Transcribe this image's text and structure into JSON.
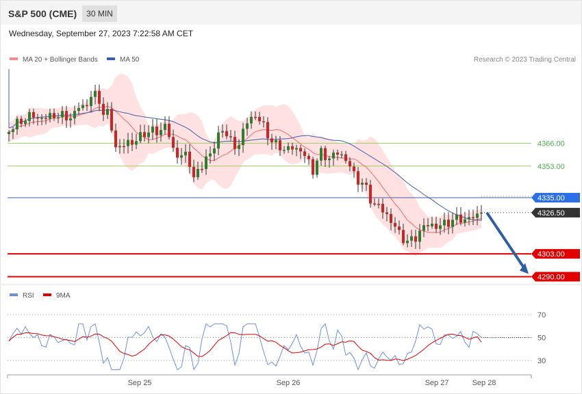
{
  "header": {
    "symbol": "S&P 500 (CME)",
    "timeframe": "30 MIN"
  },
  "datetime": "Wednesday, September 27, 2023 7:22:58 AM CET",
  "legend": {
    "ma20": "MA 20 + Bollinger Bands",
    "ma50": "MA 50"
  },
  "watermark": "Research © 2023 Trading Central",
  "colors": {
    "bullish": "#2e7d32",
    "bearish": "#c62828",
    "ma20": "#f26b6b",
    "ma50": "#3b5ea8",
    "band": "#ffd9d9",
    "pivot": "#9ccc65",
    "support": "#e00000",
    "current": "#333333",
    "ma50_tag": "#2d6fe6",
    "rsi": "#6b8fdc",
    "rsi_ma": "#e00000",
    "arrow": "#2f5f9e"
  },
  "chart_data": [
    {
      "type": "candlestick",
      "ylim": [
        4279,
        4412
      ],
      "levels": [
        {
          "label": "4366.00",
          "value": 4366.0,
          "kind": "resistance"
        },
        {
          "label": "4353.00",
          "value": 4353.0,
          "kind": "resistance"
        },
        {
          "label": "4335.00",
          "value": 4335.0,
          "kind": "ma50"
        },
        {
          "label": "4326.50",
          "value": 4326.5,
          "kind": "current"
        },
        {
          "label": "4303.00",
          "value": 4303.0,
          "kind": "support"
        },
        {
          "label": "4290.00",
          "value": 4290.0,
          "kind": "support"
        }
      ],
      "x_ticks": [
        "Sep 25",
        "Sep 26",
        "Sep 27",
        "Sep 28"
      ],
      "series": [
        {
          "name": "MA 20 + Bollinger Bands"
        },
        {
          "name": "MA 50"
        }
      ],
      "projection": {
        "from": 4326.5,
        "to": 4290.0
      }
    },
    {
      "type": "line",
      "series": [
        {
          "name": "RSI",
          "last": 50
        },
        {
          "name": "9MA",
          "last": 46
        }
      ],
      "ylim": [
        15,
        80
      ],
      "y_ticks": [
        "70",
        "50",
        "30"
      ],
      "y_tick_values": [
        70,
        50,
        30
      ],
      "x_ticks": [
        "Sep 25",
        "Sep 26",
        "Sep 27",
        "Sep 28"
      ]
    }
  ]
}
